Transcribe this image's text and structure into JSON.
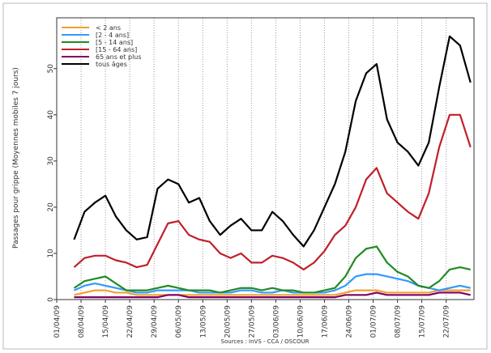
{
  "chart_data": {
    "type": "line",
    "ylabel": "Passages pour grippe (Moyennes mobiles 7 jours)",
    "xlabel": "Sources : InVS - CCA / OSCOUR",
    "x": [
      "06/04/09",
      "09/04/09",
      "12/04/09",
      "15/04/09",
      "18/04/09",
      "21/04/09",
      "24/04/09",
      "27/04/09",
      "30/04/09",
      "03/05/09",
      "06/05/09",
      "09/05/09",
      "12/05/09",
      "15/05/09",
      "18/05/09",
      "21/05/09",
      "24/05/09",
      "27/05/09",
      "30/05/09",
      "02/06/09",
      "05/06/09",
      "08/06/09",
      "11/06/09",
      "14/06/09",
      "17/06/09",
      "20/06/09",
      "23/06/09",
      "26/06/09",
      "29/06/09",
      "02/07/09",
      "05/07/09",
      "08/07/09",
      "11/07/09",
      "14/07/09",
      "17/07/09",
      "20/07/09",
      "23/07/09",
      "26/07/09",
      "29/07/09"
    ],
    "xlim": [
      "01/04/09",
      "30/07/09"
    ],
    "xticks": [
      "01/04/09",
      "08/04/09",
      "15/04/09",
      "22/04/09",
      "29/04/09",
      "06/05/09",
      "13/05/09",
      "20/05/09",
      "27/05/09",
      "03/06/09",
      "10/06/09",
      "17/06/09",
      "24/06/09",
      "01/07/09",
      "08/07/09",
      "15/07/09",
      "22/07/09"
    ],
    "ylim": [
      0,
      61
    ],
    "yticks": [
      0,
      10,
      20,
      30,
      40,
      50
    ],
    "grid": "x",
    "legend": "top-left",
    "series": [
      {
        "name": "< 2 ans",
        "color": "#f0a030",
        "values": [
          1,
          1.5,
          2,
          2,
          1.5,
          1.5,
          1,
          1,
          1,
          1,
          1,
          1,
          1,
          1,
          1,
          1,
          1,
          1,
          1,
          1,
          1,
          1,
          1,
          1,
          1,
          1,
          1.5,
          2,
          2,
          2,
          1.5,
          1.5,
          1.5,
          1.5,
          1.5,
          2,
          2,
          2,
          2
        ]
      },
      {
        "name": "[2 - 4 ans]",
        "color": "#3399ff",
        "values": [
          2,
          3,
          3.5,
          3,
          2.5,
          2,
          1.5,
          1.5,
          2,
          2,
          2,
          2,
          1.5,
          1.5,
          1.5,
          1.5,
          2,
          2,
          1.5,
          1.5,
          2,
          1.5,
          1.5,
          1.5,
          1.5,
          2,
          3,
          5,
          5.5,
          5.5,
          5,
          4.5,
          4,
          3,
          2.5,
          2,
          2.5,
          3,
          2.5
        ]
      },
      {
        "name": "[5 - 14 ans]",
        "color": "#228b22",
        "values": [
          2.5,
          4,
          4.5,
          5,
          3.5,
          2,
          2,
          2,
          2.5,
          3,
          2.5,
          2,
          2,
          2,
          1.5,
          2,
          2.5,
          2.5,
          2,
          2.5,
          2,
          2,
          1.5,
          1.5,
          2,
          2.5,
          5,
          9,
          11,
          11.5,
          8,
          6,
          5,
          3,
          2.5,
          4,
          6.5,
          7,
          6.5
        ]
      },
      {
        "name": "[15 - 64 ans]",
        "color": "#c0202a",
        "values": [
          7,
          9,
          9.5,
          9.5,
          8.5,
          8,
          7,
          7.5,
          12,
          16.5,
          17,
          14,
          13,
          12.5,
          10,
          9,
          10,
          8,
          8,
          9.5,
          9,
          8,
          6.5,
          8,
          10.5,
          14,
          16,
          20,
          26,
          28.5,
          23,
          21,
          19,
          17.5,
          23,
          33,
          40,
          40,
          33
        ]
      },
      {
        "name": "65 ans et plus",
        "color": "#800060",
        "values": [
          0.5,
          0.5,
          0.5,
          0.5,
          0.5,
          0.5,
          0.5,
          0.5,
          0.5,
          1,
          1,
          0.5,
          0.5,
          0.5,
          0.5,
          0.5,
          0.5,
          0.5,
          0.5,
          0.5,
          0.5,
          0.5,
          0.5,
          0.5,
          0.5,
          0.5,
          1,
          1,
          1,
          1.5,
          1,
          1,
          1,
          1,
          1,
          1.5,
          1.5,
          1.5,
          1
        ]
      },
      {
        "name": "tous âges",
        "color": "#000000",
        "values": [
          13,
          19,
          21,
          22.5,
          18,
          15,
          13,
          13.5,
          24,
          26,
          25,
          21,
          22,
          17,
          14,
          16,
          17.5,
          15,
          15,
          19,
          17,
          14,
          11.5,
          15,
          20,
          25,
          32,
          43,
          49,
          51,
          39,
          34,
          32,
          29,
          34,
          46,
          57,
          55,
          47
        ]
      }
    ]
  }
}
